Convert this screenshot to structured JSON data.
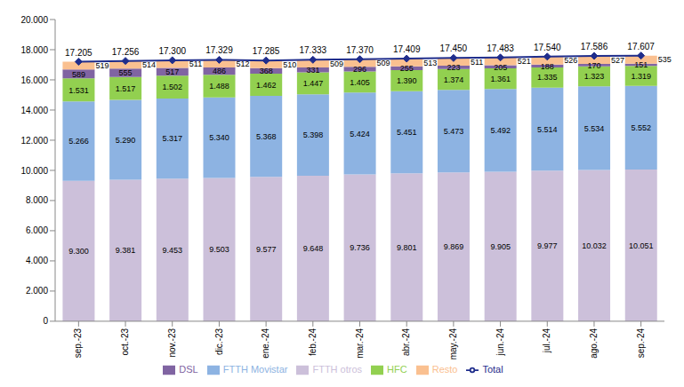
{
  "chart_data": {
    "type": "bar",
    "stacked": true,
    "data_labels": true,
    "grid": false,
    "legend": "bottom",
    "categories": [
      "sep.-23",
      "oct.-23",
      "nov.-23",
      "dic.-23",
      "ene.-24",
      "feb.-24",
      "mar.-24",
      "abr.-24",
      "may.-24",
      "jun.-24",
      "jul.-24",
      "ago.-24",
      "sep.-24"
    ],
    "ylim": [
      0,
      20000
    ],
    "yticks": [
      {
        "value": 0,
        "label": "0"
      },
      {
        "value": 2000,
        "label": "2.000"
      },
      {
        "value": 4000,
        "label": "4.000"
      },
      {
        "value": 6000,
        "label": "6.000"
      },
      {
        "value": 8000,
        "label": "8.000"
      },
      {
        "value": 10000,
        "label": "10.000"
      },
      {
        "value": 12000,
        "label": "12.000"
      },
      {
        "value": 14000,
        "label": "14.000"
      },
      {
        "value": 16000,
        "label": "16.000"
      },
      {
        "value": 18000,
        "label": "18.000"
      },
      {
        "value": 20000,
        "label": "20.000"
      }
    ],
    "series": [
      {
        "name": "FTTH otros",
        "type": "bar",
        "color": "#ccc0da",
        "values": [
          9300,
          9381,
          9453,
          9503,
          9577,
          9648,
          9736,
          9801,
          9869,
          9905,
          9977,
          10032,
          10051
        ],
        "value_labels": [
          "9.300",
          "9.381",
          "9.453",
          "9.503",
          "9.577",
          "9.648",
          "9.736",
          "9.801",
          "9.869",
          "9.905",
          "9.977",
          "10.032",
          "10.051"
        ]
      },
      {
        "name": "FTTH Movistar",
        "type": "bar",
        "color": "#8db3e2",
        "values": [
          5266,
          5290,
          5317,
          5340,
          5368,
          5398,
          5424,
          5451,
          5473,
          5492,
          5514,
          5534,
          5552
        ],
        "value_labels": [
          "5.266",
          "5.290",
          "5.317",
          "5.340",
          "5.368",
          "5.398",
          "5.424",
          "5.451",
          "5.473",
          "5.492",
          "5.514",
          "5.534",
          "5.552"
        ]
      },
      {
        "name": "HFC",
        "type": "bar",
        "color": "#92d050",
        "values": [
          1531,
          1517,
          1502,
          1488,
          1462,
          1447,
          1405,
          1390,
          1374,
          1361,
          1335,
          1323,
          1319
        ],
        "value_labels": [
          "1.531",
          "1.517",
          "1.502",
          "1.488",
          "1.462",
          "1.447",
          "1.405",
          "1.390",
          "1.374",
          "1.361",
          "1.335",
          "1.323",
          "1.319"
        ]
      },
      {
        "name": "DSL",
        "type": "bar",
        "color": "#8064a2",
        "values": [
          589,
          555,
          517,
          486,
          368,
          331,
          296,
          255,
          223,
          205,
          188,
          170,
          151
        ]
      },
      {
        "name": "Resto",
        "type": "bar",
        "color": "#fac090",
        "values": [
          519,
          514,
          511,
          512,
          510,
          509,
          509,
          513,
          511,
          521,
          526,
          527,
          535
        ]
      },
      {
        "name": "Total",
        "type": "line",
        "color": "#1f2d8c",
        "marker": "diamond",
        "values": [
          17205,
          17256,
          17300,
          17329,
          17285,
          17333,
          17370,
          17409,
          17450,
          17483,
          17540,
          17586,
          17607
        ],
        "value_labels": [
          "17.205",
          "17.256",
          "17.300",
          "17.329",
          "17.285",
          "17.333",
          "17.370",
          "17.409",
          "17.450",
          "17.483",
          "17.540",
          "17.586",
          "17.607"
        ]
      }
    ]
  }
}
